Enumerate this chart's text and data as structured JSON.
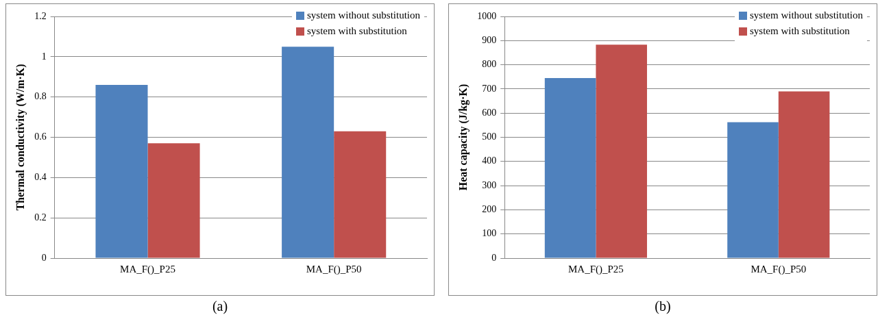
{
  "chart_data": [
    {
      "type": "bar",
      "ylabel": "Thermal conductivity (W/m·K)",
      "categories": [
        "MA_F()_P25",
        "MA_F()_P50"
      ],
      "series": [
        {
          "name": "system without substitution",
          "color": "#4f81bd",
          "values": [
            0.86,
            1.05
          ]
        },
        {
          "name": "system with substitution",
          "color": "#c0504d",
          "values": [
            0.57,
            0.63
          ]
        }
      ],
      "ylim": [
        0,
        1.2
      ],
      "yticks": [
        0,
        0.2,
        0.4,
        0.6,
        0.8,
        1,
        1.2
      ],
      "grid": "y",
      "legend": "top right",
      "annotations": [
        "(a)"
      ]
    },
    {
      "type": "bar",
      "ylabel": "Heat capacity (J/kg·K)",
      "categories": [
        "MA_F()_P25",
        "MA_F()_P50"
      ],
      "series": [
        {
          "name": "system without substitution",
          "color": "#4f81bd",
          "values": [
            745,
            562
          ]
        },
        {
          "name": "system with substitution",
          "color": "#c0504d",
          "values": [
            883,
            690
          ]
        }
      ],
      "ylim": [
        0,
        1000
      ],
      "yticks": [
        0,
        100,
        200,
        300,
        400,
        500,
        600,
        700,
        800,
        900,
        1000
      ],
      "grid": "y",
      "legend": "top right",
      "annotations": [
        "(b)"
      ]
    }
  ]
}
